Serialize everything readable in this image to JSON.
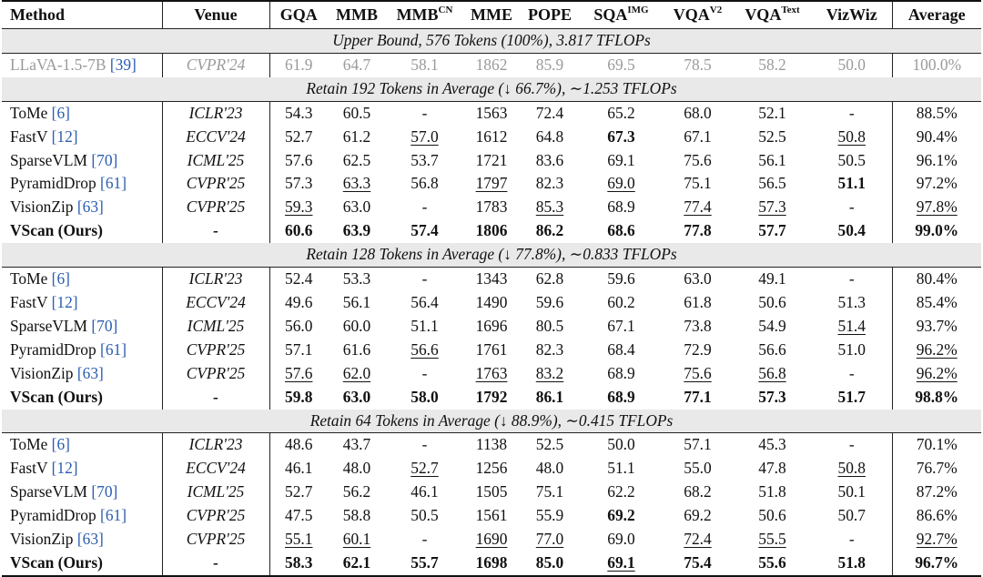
{
  "headers": {
    "method": "Method",
    "venue": "Venue",
    "gqa": "GQA",
    "mmb": "MMB",
    "mmbcn_base": "MMB",
    "mmbcn_sup": "CN",
    "mme": "MME",
    "pope": "POPE",
    "sqa_base": "SQA",
    "sqa_sup": "IMG",
    "vqav2_base": "VQA",
    "vqav2_sup": "V2",
    "vqatext_base": "VQA",
    "vqatext_sup": "Text",
    "vizwiz": "VizWiz",
    "average": "Average"
  },
  "upper_bound": {
    "title": "Upper Bound, 576 Tokens (100%), 3.817 TFLOPs",
    "row": {
      "method_name": "LLaVA-1.5-7B",
      "method_ref": "[39]",
      "venue": "CVPR'24",
      "values": [
        "61.9",
        "64.7",
        "58.1",
        "1862",
        "85.9",
        "69.5",
        "78.5",
        "58.2",
        "50.0",
        "100.0%"
      ]
    }
  },
  "sections": [
    {
      "title": "Retain 192 Tokens in Average (↓ 66.7%), ∼1.253 TFLOPs",
      "rows": [
        {
          "method_name": "ToMe",
          "method_ref": "[6]",
          "venue": "ICLR'23",
          "values": [
            "54.3",
            "60.5",
            "-",
            "1563",
            "72.4",
            "65.2",
            "68.0",
            "52.1",
            "-",
            "88.5%"
          ]
        },
        {
          "method_name": "FastV",
          "method_ref": "[12]",
          "venue": "ECCV'24",
          "values": [
            "52.7",
            "61.2",
            "57.0",
            "1612",
            "64.8",
            "67.3",
            "67.1",
            "52.5",
            "50.8",
            "90.4%"
          ]
        },
        {
          "method_name": "SparseVLM",
          "method_ref": "[70]",
          "venue": "ICML'25",
          "values": [
            "57.6",
            "62.5",
            "53.7",
            "1721",
            "83.6",
            "69.1",
            "75.6",
            "56.1",
            "50.5",
            "96.1%"
          ]
        },
        {
          "method_name": "PyramidDrop",
          "method_ref": "[61]",
          "venue": "CVPR'25",
          "values": [
            "57.3",
            "63.3",
            "56.8",
            "1797",
            "82.3",
            "69.0",
            "75.1",
            "56.5",
            "51.1",
            "97.2%"
          ]
        },
        {
          "method_name": "VisionZip",
          "method_ref": "[63]",
          "venue": "CVPR'25",
          "values": [
            "59.3",
            "63.0",
            "-",
            "1783",
            "85.3",
            "68.9",
            "77.4",
            "57.3",
            "-",
            "97.8%"
          ]
        },
        {
          "method_name": "VScan (Ours)",
          "method_ref": "",
          "venue": "-",
          "values": [
            "60.6",
            "63.9",
            "57.4",
            "1806",
            "86.2",
            "68.6",
            "77.8",
            "57.7",
            "50.4",
            "99.0%"
          ]
        }
      ]
    },
    {
      "title": "Retain 128 Tokens in Average (↓ 77.8%), ∼0.833 TFLOPs",
      "rows": [
        {
          "method_name": "ToMe",
          "method_ref": "[6]",
          "venue": "ICLR'23",
          "values": [
            "52.4",
            "53.3",
            "-",
            "1343",
            "62.8",
            "59.6",
            "63.0",
            "49.1",
            "-",
            "80.4%"
          ]
        },
        {
          "method_name": "FastV",
          "method_ref": "[12]",
          "venue": "ECCV'24",
          "values": [
            "49.6",
            "56.1",
            "56.4",
            "1490",
            "59.6",
            "60.2",
            "61.8",
            "50.6",
            "51.3",
            "85.4%"
          ]
        },
        {
          "method_name": "SparseVLM",
          "method_ref": "[70]",
          "venue": "ICML'25",
          "values": [
            "56.0",
            "60.0",
            "51.1",
            "1696",
            "80.5",
            "67.1",
            "73.8",
            "54.9",
            "51.4",
            "93.7%"
          ]
        },
        {
          "method_name": "PyramidDrop",
          "method_ref": "[61]",
          "venue": "CVPR'25",
          "values": [
            "57.1",
            "61.6",
            "56.6",
            "1761",
            "82.3",
            "68.4",
            "72.9",
            "56.6",
            "51.0",
            "96.2%"
          ]
        },
        {
          "method_name": "VisionZip",
          "method_ref": "[63]",
          "venue": "CVPR'25",
          "values": [
            "57.6",
            "62.0",
            "-",
            "1763",
            "83.2",
            "68.9",
            "75.6",
            "56.8",
            "-",
            "96.2%"
          ]
        },
        {
          "method_name": "VScan (Ours)",
          "method_ref": "",
          "venue": "-",
          "values": [
            "59.8",
            "63.0",
            "58.0",
            "1792",
            "86.1",
            "68.9",
            "77.1",
            "57.3",
            "51.7",
            "98.8%"
          ]
        }
      ]
    },
    {
      "title": "Retain 64 Tokens in Average (↓ 88.9%), ∼0.415 TFLOPs",
      "rows": [
        {
          "method_name": "ToMe",
          "method_ref": "[6]",
          "venue": "ICLR'23",
          "values": [
            "48.6",
            "43.7",
            "-",
            "1138",
            "52.5",
            "50.0",
            "57.1",
            "45.3",
            "-",
            "70.1%"
          ]
        },
        {
          "method_name": "FastV",
          "method_ref": "[12]",
          "venue": "ECCV'24",
          "values": [
            "46.1",
            "48.0",
            "52.7",
            "1256",
            "48.0",
            "51.1",
            "55.0",
            "47.8",
            "50.8",
            "76.7%"
          ]
        },
        {
          "method_name": "SparseVLM",
          "method_ref": "[70]",
          "venue": "ICML'25",
          "values": [
            "52.7",
            "56.2",
            "46.1",
            "1505",
            "75.1",
            "62.2",
            "68.2",
            "51.8",
            "50.1",
            "87.2%"
          ]
        },
        {
          "method_name": "PyramidDrop",
          "method_ref": "[61]",
          "venue": "CVPR'25",
          "values": [
            "47.5",
            "58.8",
            "50.5",
            "1561",
            "55.9",
            "69.2",
            "69.2",
            "50.6",
            "50.7",
            "86.6%"
          ]
        },
        {
          "method_name": "VisionZip",
          "method_ref": "[63]",
          "venue": "CVPR'25",
          "values": [
            "55.1",
            "60.1",
            "-",
            "1690",
            "77.0",
            "69.0",
            "72.4",
            "55.5",
            "-",
            "92.7%"
          ]
        },
        {
          "method_name": "VScan (Ours)",
          "method_ref": "",
          "venue": "-",
          "values": [
            "58.3",
            "62.1",
            "55.7",
            "1698",
            "85.0",
            "69.1",
            "75.4",
            "55.6",
            "51.8",
            "96.7%"
          ]
        }
      ]
    }
  ],
  "emphasis": {
    "bold": [
      "0.1.5",
      "0.3.8",
      "1.5.5",
      "2.3.5"
    ],
    "underline": [
      "0.1.2",
      "0.1.8",
      "0.3.1",
      "0.3.3",
      "0.3.5",
      "0.4.0",
      "0.4.4",
      "0.4.6",
      "0.4.7",
      "0.4.9",
      "1.2.8",
      "1.3.2",
      "1.3.9",
      "1.4.0",
      "1.4.1",
      "1.4.3",
      "1.4.4",
      "1.4.6",
      "1.4.7",
      "1.4.9",
      "2.1.2",
      "2.1.8",
      "2.4.0",
      "2.4.1",
      "2.4.3",
      "2.4.4",
      "2.4.6",
      "2.4.7",
      "2.4.9",
      "2.5.5"
    ]
  }
}
